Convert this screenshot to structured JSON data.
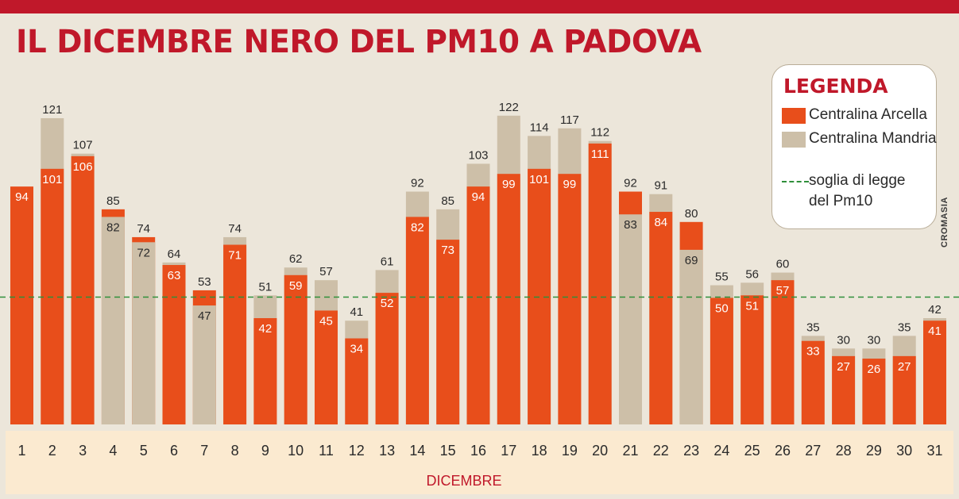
{
  "header": {
    "title": "IL DICEMBRE NERO DEL PM10 A PADOVA"
  },
  "legend": {
    "title": "LEGENDA",
    "items": [
      {
        "label": "Centralina Arcella",
        "color": "#e84e1b"
      },
      {
        "label": "Centralina Mandria",
        "color": "#cdbfa8"
      }
    ],
    "threshold_label_line1": "soglia di legge",
    "threshold_label_line2": "del Pm10",
    "threshold_color": "#2f8f3a"
  },
  "credit": "CROMASIA",
  "chart_data": {
    "type": "bar",
    "title": "IL DICEMBRE NERO DEL PM10 A PADOVA",
    "xlabel": "DICEMBRE",
    "ylabel": "",
    "categories": [
      "1",
      "2",
      "3",
      "4",
      "5",
      "6",
      "7",
      "8",
      "9",
      "10",
      "11",
      "12",
      "13",
      "14",
      "15",
      "16",
      "17",
      "18",
      "19",
      "20",
      "21",
      "22",
      "23",
      "24",
      "25",
      "26",
      "27",
      "28",
      "29",
      "30",
      "31"
    ],
    "series": [
      {
        "name": "Centralina Arcella",
        "color": "#e84e1b",
        "values": [
          94,
          101,
          106,
          85,
          74,
          63,
          53,
          71,
          42,
          59,
          45,
          34,
          52,
          82,
          73,
          94,
          99,
          101,
          99,
          111,
          92,
          84,
          80,
          50,
          51,
          57,
          33,
          27,
          26,
          27,
          41
        ]
      },
      {
        "name": "Centralina Mandria",
        "color": "#cdbfa8",
        "values": [
          null,
          121,
          107,
          82,
          72,
          64,
          47,
          74,
          51,
          62,
          57,
          41,
          61,
          92,
          85,
          103,
          122,
          114,
          117,
          112,
          83,
          91,
          69,
          55,
          56,
          60,
          35,
          30,
          30,
          35,
          42
        ]
      }
    ],
    "threshold": {
      "label": "soglia di legge del Pm10",
      "value": 50
    },
    "ylim": [
      0,
      130
    ],
    "grid": false,
    "legend_position": "top-right"
  }
}
